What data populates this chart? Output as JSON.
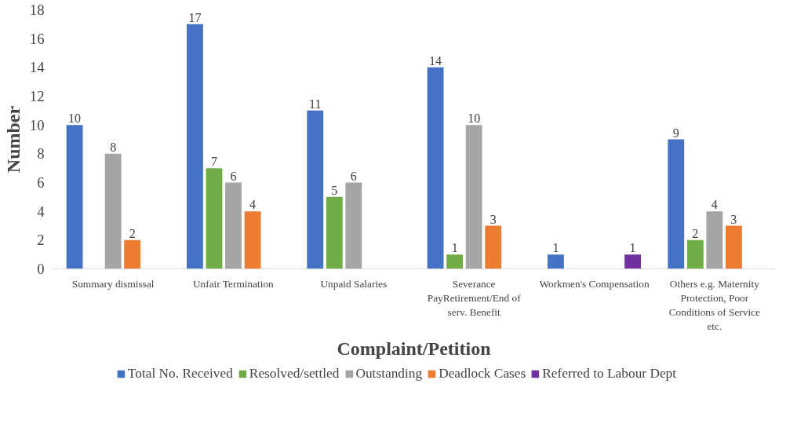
{
  "chart_data": {
    "type": "bar",
    "xlabel": "Complaint/Petition",
    "ylabel": "Number",
    "categories": [
      "Summary dismissal",
      "Unfair Termination",
      "Unpaid Salaries",
      "Severance PayRetirement/End of serv. Benefit",
      "Workmen's Compensation",
      "Others e.g. Maternity Protection, Poor Conditions of Service etc."
    ],
    "series": [
      {
        "name": "Total No. Received",
        "color": "#4472c4",
        "values": [
          10,
          17,
          11,
          14,
          1,
          9
        ]
      },
      {
        "name": "Resolved/settled",
        "color": "#70ad47",
        "values": [
          null,
          7,
          5,
          1,
          null,
          2
        ]
      },
      {
        "name": "Outstanding",
        "color": "#a5a5a5",
        "values": [
          8,
          6,
          6,
          10,
          null,
          4
        ]
      },
      {
        "name": "Deadlock Cases",
        "color": "#ed7d31",
        "values": [
          2,
          4,
          null,
          3,
          null,
          3
        ]
      },
      {
        "name": "Referred to Labour Dept",
        "color": "#7030a0",
        "values": [
          null,
          null,
          null,
          null,
          1,
          null
        ]
      }
    ],
    "ylim": [
      0,
      18
    ],
    "yticks": [
      0,
      2,
      4,
      6,
      8,
      10,
      12,
      14,
      16,
      18
    ],
    "grid": false,
    "legend": "bottom",
    "data_labels": true
  }
}
